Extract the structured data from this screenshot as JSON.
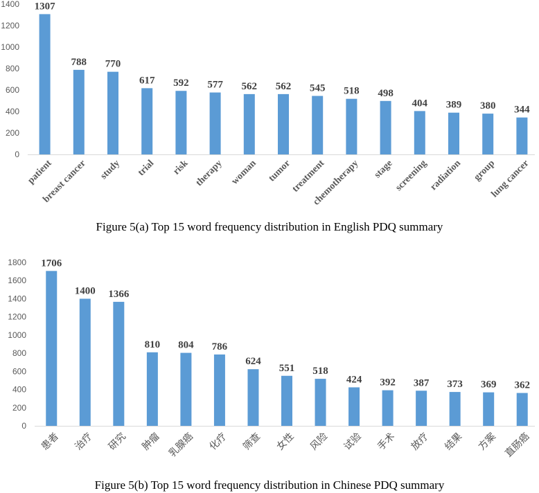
{
  "chart_data": [
    {
      "type": "bar",
      "title": "",
      "xlabel": "",
      "ylabel": "",
      "ylim": [
        0,
        1400
      ],
      "yticks": [
        0,
        200,
        400,
        600,
        800,
        1000,
        1200,
        1400
      ],
      "categories": [
        "patient",
        "breast cancer",
        "study",
        "trial",
        "risk",
        "therapy",
        "woman",
        "tumor",
        "treatment",
        "chemotherapy",
        "stage",
        "screening",
        "radiation",
        "group",
        "lung cancer"
      ],
      "values": [
        1307,
        788,
        770,
        617,
        592,
        577,
        562,
        562,
        545,
        518,
        498,
        404,
        389,
        380,
        344
      ],
      "bar_color": "#5b9bd5",
      "caption": "Figure 5(a) Top 15 word frequency distribution in English PDQ summary"
    },
    {
      "type": "bar",
      "title": "",
      "xlabel": "",
      "ylabel": "",
      "ylim": [
        0,
        1800
      ],
      "yticks": [
        0,
        200,
        400,
        600,
        800,
        1000,
        1200,
        1400,
        1600,
        1800
      ],
      "categories": [
        "患者",
        "治疗",
        "研究",
        "肿瘤",
        "乳腺癌",
        "化疗",
        "筛查",
        "女性",
        "风险",
        "试验",
        "手术",
        "放疗",
        "结果",
        "方案",
        "直肠癌"
      ],
      "values": [
        1706,
        1400,
        1366,
        810,
        804,
        786,
        624,
        551,
        518,
        424,
        392,
        387,
        373,
        369,
        362
      ],
      "bar_color": "#5b9bd5",
      "caption": "Figure 5(b) Top 15 word frequency distribution in Chinese PDQ summary"
    }
  ]
}
